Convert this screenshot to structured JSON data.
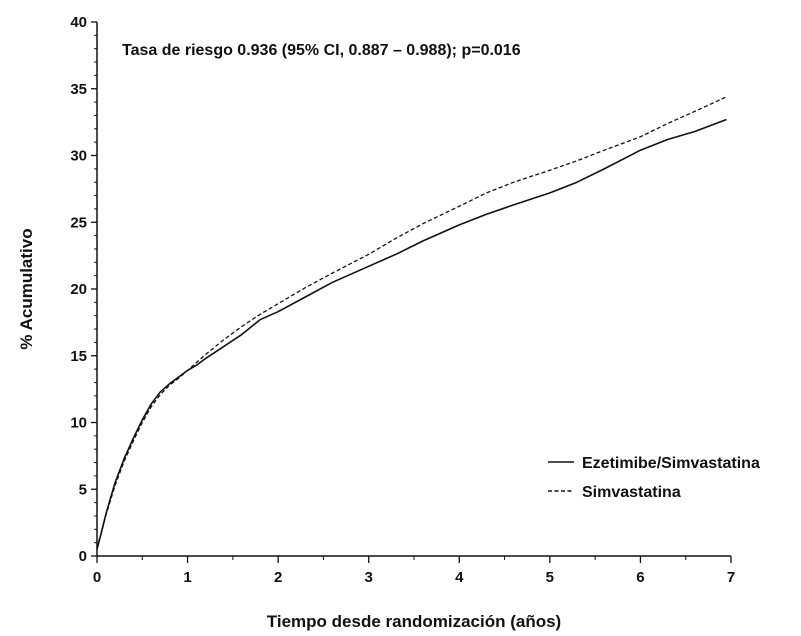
{
  "chart_data": {
    "type": "line",
    "title": "",
    "annotation": "Tasa de riesgo 0.936 (95% CI, 0.887 – 0.988); p=0.016",
    "xlabel": "Tiempo desde randomización (años)",
    "ylabel": "% Acumulativo",
    "xlim": [
      0,
      7
    ],
    "ylim": [
      0,
      40
    ],
    "xticks": [
      0,
      1,
      2,
      3,
      4,
      5,
      6,
      7
    ],
    "yticks": [
      0,
      5,
      10,
      15,
      20,
      25,
      30,
      35,
      40
    ],
    "grid": false,
    "legend_position": "bottom-right",
    "series": [
      {
        "name": "Ezetimibe/Simvastatina",
        "style": "solid",
        "color": "#111111",
        "x": [
          0,
          0.05,
          0.1,
          0.2,
          0.3,
          0.4,
          0.5,
          0.6,
          0.7,
          0.8,
          0.9,
          1.0,
          1.1,
          1.2,
          1.4,
          1.6,
          1.8,
          2.0,
          2.3,
          2.6,
          3.0,
          3.3,
          3.6,
          4.0,
          4.3,
          4.6,
          5.0,
          5.3,
          5.6,
          6.0,
          6.3,
          6.6,
          6.95
        ],
        "y": [
          0.5,
          1.8,
          3.2,
          5.5,
          7.3,
          8.8,
          10.2,
          11.4,
          12.3,
          12.9,
          13.4,
          13.9,
          14.3,
          14.8,
          15.7,
          16.6,
          17.7,
          18.3,
          19.4,
          20.5,
          21.7,
          22.6,
          23.6,
          24.8,
          25.6,
          26.3,
          27.2,
          28.0,
          29.0,
          30.4,
          31.2,
          31.8,
          32.7
        ]
      },
      {
        "name": "Simvastatina",
        "style": "dashed",
        "color": "#111111",
        "x": [
          0,
          0.05,
          0.1,
          0.2,
          0.3,
          0.4,
          0.5,
          0.6,
          0.7,
          0.8,
          0.9,
          1.0,
          1.1,
          1.2,
          1.4,
          1.6,
          1.8,
          2.0,
          2.3,
          2.6,
          3.0,
          3.3,
          3.6,
          4.0,
          4.3,
          4.6,
          5.0,
          5.3,
          5.6,
          6.0,
          6.3,
          6.6,
          6.95
        ],
        "y": [
          0.6,
          1.8,
          3.1,
          5.3,
          7.1,
          8.6,
          10.0,
          11.2,
          12.1,
          12.8,
          13.3,
          13.9,
          14.5,
          15.1,
          16.2,
          17.2,
          18.1,
          18.9,
          20.1,
          21.2,
          22.6,
          23.8,
          24.9,
          26.2,
          27.2,
          28.0,
          28.9,
          29.6,
          30.4,
          31.4,
          32.4,
          33.3,
          34.4
        ]
      }
    ]
  }
}
